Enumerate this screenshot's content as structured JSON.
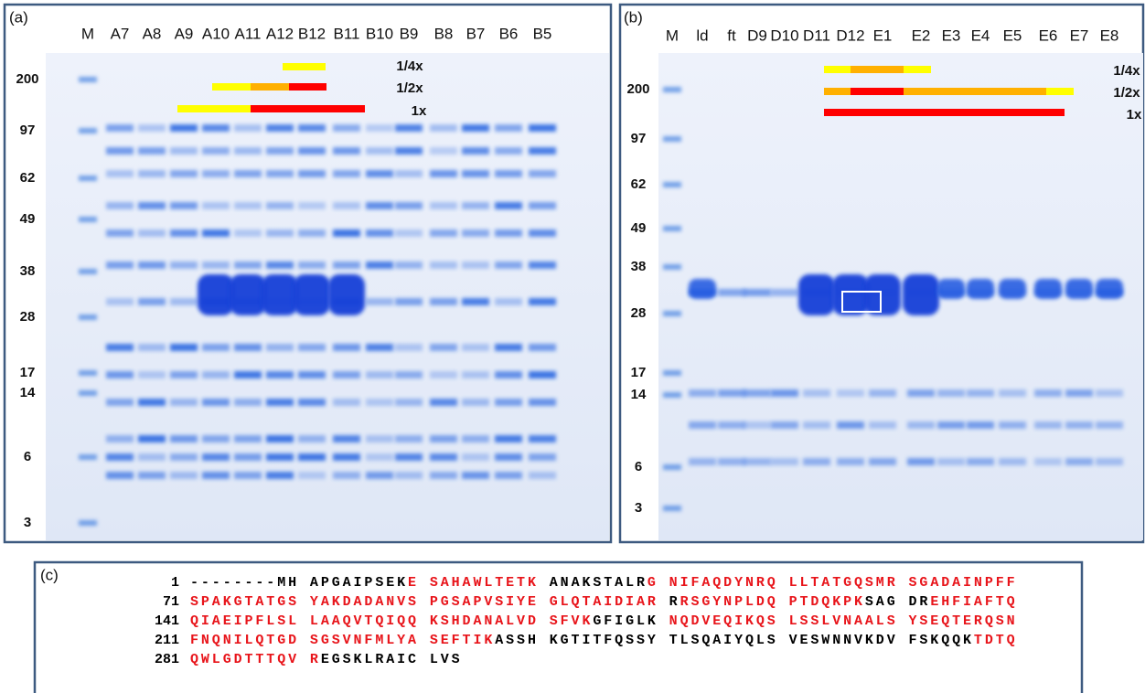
{
  "panel_a": {
    "label": "(a)",
    "lanes": [
      "M",
      "A7",
      "A8",
      "A9",
      "A10",
      "A11",
      "A12",
      "B12",
      "B11",
      "B10",
      "B9",
      "B8",
      "B7",
      "B6",
      "B5"
    ],
    "markers": [
      200,
      97,
      62,
      49,
      38,
      28,
      17,
      14,
      6,
      3
    ],
    "fractions": [
      "1/4x",
      "1/2x",
      "1x"
    ]
  },
  "panel_b": {
    "label": "(b)",
    "lanes": [
      "M",
      "ld",
      "ft",
      "D9",
      "D10",
      "D11",
      "D12",
      "E1",
      "E2",
      "E3",
      "E4",
      "E5",
      "E6",
      "E7",
      "E8"
    ],
    "markers": [
      200,
      97,
      62,
      49,
      38,
      28,
      17,
      14,
      6,
      3
    ],
    "fractions": [
      "1/4x",
      "1/2x",
      "1x"
    ]
  },
  "panel_c": {
    "label": "(c)",
    "lines": [
      {
        "number": "1",
        "segments": [
          {
            "text": "--------MH APGAIPSEK",
            "color": "black"
          },
          {
            "text": "E SAHAWLTETK",
            "color": "red"
          },
          {
            "text": " ANAKSTALR",
            "color": "black"
          },
          {
            "text": "G NIFAQDYNRQ LLTATGQSMR SGADAINPFF",
            "color": "red"
          }
        ]
      },
      {
        "number": "71",
        "segments": [
          {
            "text": "SPAKGTATGS YAKDADANVS PGSAPVSIYE GLQTAIDIAR",
            "color": "red"
          },
          {
            "text": " R",
            "color": "black"
          },
          {
            "text": "RSGYNPLDQ PTDQKPK",
            "color": "red"
          },
          {
            "text": "SAG DR",
            "color": "black"
          },
          {
            "text": "EHFIAFTQ",
            "color": "red"
          }
        ]
      },
      {
        "number": "141",
        "segments": [
          {
            "text": "QIAEIPFLSL LAAQVTQIQQ KSHDANALVD SFVK",
            "color": "red"
          },
          {
            "text": "GFIGLK ",
            "color": "black"
          },
          {
            "text": "NQDVEQIKQS LSSLVNAALS YSEQTERQSN",
            "color": "red"
          }
        ]
      },
      {
        "number": "211",
        "segments": [
          {
            "text": "FNQNILQTGD SGSVNFMLYA SEFTIK",
            "color": "red"
          },
          {
            "text": "ASSH KGTITFQSSY TLSQAIYQLS VESWNNVKDV FSKQQK",
            "color": "black"
          },
          {
            "text": "TDTQ",
            "color": "red"
          }
        ]
      },
      {
        "number": "281",
        "segments": [
          {
            "text": "QWLGDTTTQV R",
            "color": "red"
          },
          {
            "text": "EGSKLRAIC LVS",
            "color": "black"
          }
        ]
      }
    ]
  }
}
